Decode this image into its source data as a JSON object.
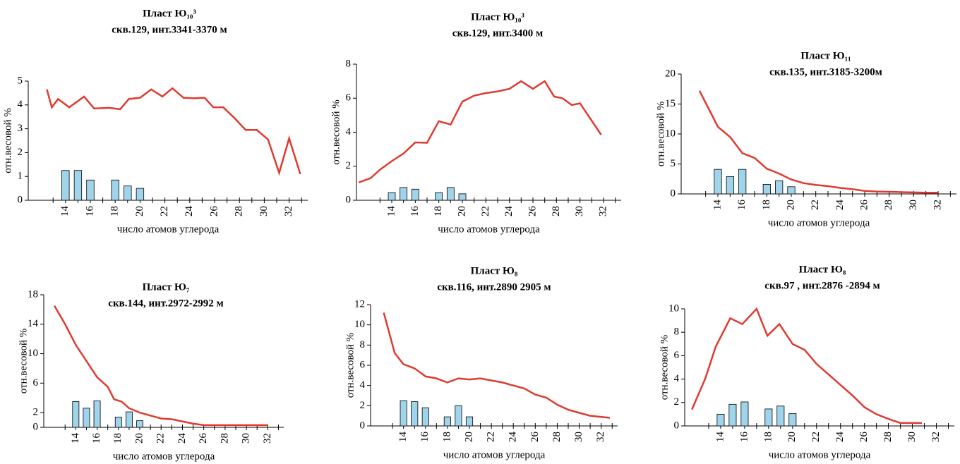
{
  "chart_data": [
    {
      "type": "combo",
      "title": "Пласт Ю₁₀³",
      "subtitle": "скв.129, инт.3341-3370 м",
      "xlabel": "число атомов углерода",
      "ylabel": "отн.весовой %",
      "xlim": [
        11,
        33.5
      ],
      "xticks": [
        14,
        16,
        18,
        20,
        22,
        24,
        26,
        28,
        30,
        32
      ],
      "minor_xticks": [
        13,
        15,
        17,
        19,
        21,
        23,
        25,
        27,
        29,
        31,
        33
      ],
      "ylim": [
        0,
        5
      ],
      "yticks": [
        0,
        1,
        2,
        3,
        4,
        5
      ],
      "series": [
        {
          "type": "bar",
          "color": "#9fd4ea",
          "x": [
            14,
            15,
            16,
            18,
            19,
            20
          ],
          "values": [
            1.25,
            1.25,
            0.85,
            0.85,
            0.6,
            0.5
          ]
        },
        {
          "type": "line",
          "color": "#e03a30",
          "x": [
            12.5,
            12.9,
            13.4,
            14.3,
            15.5,
            16.3,
            17.5,
            18.4,
            19.1,
            20,
            20.9,
            21.8,
            22.6,
            23.5,
            24.4,
            25.2,
            25.9,
            26.7,
            27.6,
            28.5,
            29.4,
            30.3,
            31.2,
            32,
            32.9
          ],
          "values": [
            4.65,
            3.9,
            4.25,
            3.9,
            4.35,
            3.85,
            3.88,
            3.82,
            4.25,
            4.3,
            4.65,
            4.35,
            4.7,
            4.3,
            4.28,
            4.3,
            3.9,
            3.9,
            3.45,
            2.95,
            2.95,
            2.55,
            1.15,
            2.6,
            1.1
          ]
        }
      ]
    },
    {
      "type": "combo",
      "title": "Пласт Ю₁₀³",
      "subtitle": "скв.129, инт.3400 м",
      "xlabel": "число атомов углерода",
      "ylabel": "отн.весовой %",
      "xlim": [
        11,
        33.5
      ],
      "xticks": [
        14,
        16,
        18,
        20,
        22,
        24,
        26,
        28,
        30,
        32
      ],
      "minor_xticks": [
        13,
        15,
        17,
        19,
        21,
        23,
        25,
        27,
        29,
        31,
        33
      ],
      "ylim": [
        0,
        8
      ],
      "yticks": [
        0,
        2,
        4,
        6,
        8
      ],
      "series": [
        {
          "type": "bar",
          "color": "#9fd4ea",
          "x": [
            14,
            15,
            16,
            18,
            19,
            20
          ],
          "values": [
            0.45,
            0.75,
            0.65,
            0.45,
            0.75,
            0.38
          ]
        },
        {
          "type": "line",
          "color": "#e03a30",
          "x": [
            11.2,
            12.2,
            13,
            14,
            15,
            16,
            17,
            18,
            19,
            20,
            21,
            22,
            23,
            24,
            25,
            26,
            27,
            27.8,
            28.5,
            29.3,
            30,
            31.8
          ],
          "values": [
            1.05,
            1.3,
            1.8,
            2.3,
            2.75,
            3.4,
            3.38,
            4.65,
            4.45,
            5.8,
            6.15,
            6.3,
            6.4,
            6.55,
            7.0,
            6.55,
            7.0,
            6.1,
            6.0,
            5.6,
            5.7,
            3.85
          ]
        }
      ]
    },
    {
      "type": "combo",
      "title": "Пласт Ю₁₁",
      "subtitle": "скв.135, инт.3185-3200м",
      "xlabel": "число атомов углерода",
      "ylabel": "отн.весовой %",
      "xlim": [
        11,
        33.5
      ],
      "xticks": [
        14,
        16,
        18,
        20,
        22,
        24,
        26,
        28,
        30,
        32
      ],
      "minor_xticks": [
        13,
        15,
        17,
        19,
        21,
        23,
        25,
        27,
        29,
        31,
        33
      ],
      "ylim": [
        0,
        20
      ],
      "yticks": [
        0,
        5,
        10,
        15,
        20
      ],
      "series": [
        {
          "type": "bar",
          "color": "#9fd4ea",
          "x": [
            14,
            15,
            16,
            18,
            19,
            20
          ],
          "values": [
            4.1,
            2.9,
            4.1,
            1.6,
            2.2,
            1.2
          ]
        },
        {
          "type": "line",
          "color": "#e03a30",
          "x": [
            12.5,
            13.3,
            14,
            15,
            16,
            17,
            18,
            19,
            20,
            21,
            22,
            23,
            24,
            25,
            26,
            27,
            28,
            29,
            30,
            31,
            32
          ],
          "values": [
            17.2,
            14,
            11.2,
            9.5,
            6.8,
            6,
            4.2,
            3.4,
            2.4,
            1.8,
            1.5,
            1.3,
            1.0,
            0.8,
            0.5,
            0.4,
            0.35,
            0.3,
            0.25,
            0.2,
            0.2
          ]
        }
      ]
    },
    {
      "type": "combo",
      "title": "Пласт Ю₇",
      "subtitle": "скв.144, инт.2972-2992 м",
      "xlabel": "число атомов углерода",
      "ylabel": "отн.весовой %",
      "xlim": [
        11,
        33.5
      ],
      "xticks": [
        14,
        16,
        18,
        20,
        22,
        24,
        26,
        28,
        30,
        32
      ],
      "minor_xticks": [
        13,
        15,
        17,
        19,
        21,
        23,
        25,
        27,
        29,
        31,
        33
      ],
      "ylim": [
        0,
        18
      ],
      "yticks": [
        0,
        2,
        6,
        10,
        14,
        18
      ],
      "series": [
        {
          "type": "bar",
          "color": "#9fd4ea",
          "x": [
            14,
            15,
            16,
            18,
            19,
            20
          ],
          "values": [
            3.5,
            2.6,
            3.6,
            1.4,
            2.1,
            0.9
          ]
        },
        {
          "type": "line",
          "color": "#e03a30",
          "x": [
            12,
            13,
            14,
            15,
            16,
            17,
            17.6,
            18.3,
            19,
            20,
            21,
            22,
            23,
            24,
            25,
            26,
            27,
            28,
            29,
            30,
            32
          ],
          "values": [
            16.5,
            14,
            11.2,
            9,
            6.8,
            5.5,
            3.8,
            3.5,
            2.6,
            2,
            1.6,
            1.2,
            1.1,
            0.8,
            0.5,
            0.3,
            0.3,
            0.3,
            0.3,
            0.3,
            0.3
          ]
        }
      ]
    },
    {
      "type": "combo",
      "title": "Пласт Ю₈",
      "subtitle": "скв.116, инт.2890 2905 м",
      "xlabel": "число атомов углерода",
      "ylabel": "отн.весовой %",
      "xlim": [
        11,
        33.5
      ],
      "xticks": [
        14,
        16,
        18,
        20,
        22,
        24,
        26,
        28,
        30,
        32
      ],
      "minor_xticks": [
        13,
        15,
        17,
        19,
        21,
        23,
        25,
        27,
        29,
        31,
        33
      ],
      "ylim": [
        0,
        12
      ],
      "yticks": [
        0,
        2,
        4,
        6,
        8,
        10,
        12
      ],
      "series": [
        {
          "type": "bar",
          "color": "#9fd4ea",
          "x": [
            14,
            15,
            16,
            18,
            19,
            20
          ],
          "values": [
            2.5,
            2.4,
            1.8,
            0.9,
            2.0,
            0.9
          ]
        },
        {
          "type": "line",
          "color": "#e03a30",
          "x": [
            12.2,
            13.2,
            14,
            15,
            16,
            17,
            18,
            19,
            20,
            21,
            22,
            23,
            24,
            25,
            26,
            27,
            28,
            29,
            30,
            31,
            32.8
          ],
          "values": [
            11.2,
            7.2,
            6.1,
            5.7,
            4.9,
            4.7,
            4.3,
            4.7,
            4.6,
            4.7,
            4.5,
            4.3,
            4.0,
            3.7,
            3.1,
            2.8,
            2.1,
            1.6,
            1.3,
            1.0,
            0.8
          ]
        }
      ]
    },
    {
      "type": "combo",
      "title": "Пласт Ю₈",
      "subtitle": "скв.97 , инт.2876 -2894 м",
      "xlabel": "число атомов углерода",
      "ylabel": "отн.весовой %",
      "xlim": [
        11,
        33.5
      ],
      "xticks": [
        14,
        16,
        18,
        20,
        22,
        24,
        26,
        28,
        30,
        32
      ],
      "minor_xticks": [
        13,
        15,
        17,
        19,
        21,
        23,
        25,
        27,
        29,
        31,
        33
      ],
      "ylim": [
        0,
        10
      ],
      "yticks": [
        0,
        2,
        4,
        6,
        8,
        10
      ],
      "series": [
        {
          "type": "bar",
          "color": "#9fd4ea",
          "x": [
            14,
            15,
            16,
            18,
            19,
            20
          ],
          "values": [
            1.0,
            1.85,
            2.05,
            1.45,
            1.7,
            1.05
          ]
        },
        {
          "type": "line",
          "color": "#e03a30",
          "x": [
            11.6,
            12.7,
            13.6,
            14.8,
            15.8,
            17,
            17.9,
            18.9,
            20,
            21,
            22,
            23,
            24,
            25,
            26,
            27,
            28,
            29,
            30,
            30.8
          ],
          "values": [
            1.4,
            4,
            6.8,
            9.2,
            8.7,
            10,
            7.7,
            8.7,
            7,
            6.5,
            5.3,
            4.4,
            3.5,
            2.6,
            1.6,
            1.0,
            0.6,
            0.25,
            0.25,
            0.25
          ]
        }
      ]
    }
  ]
}
